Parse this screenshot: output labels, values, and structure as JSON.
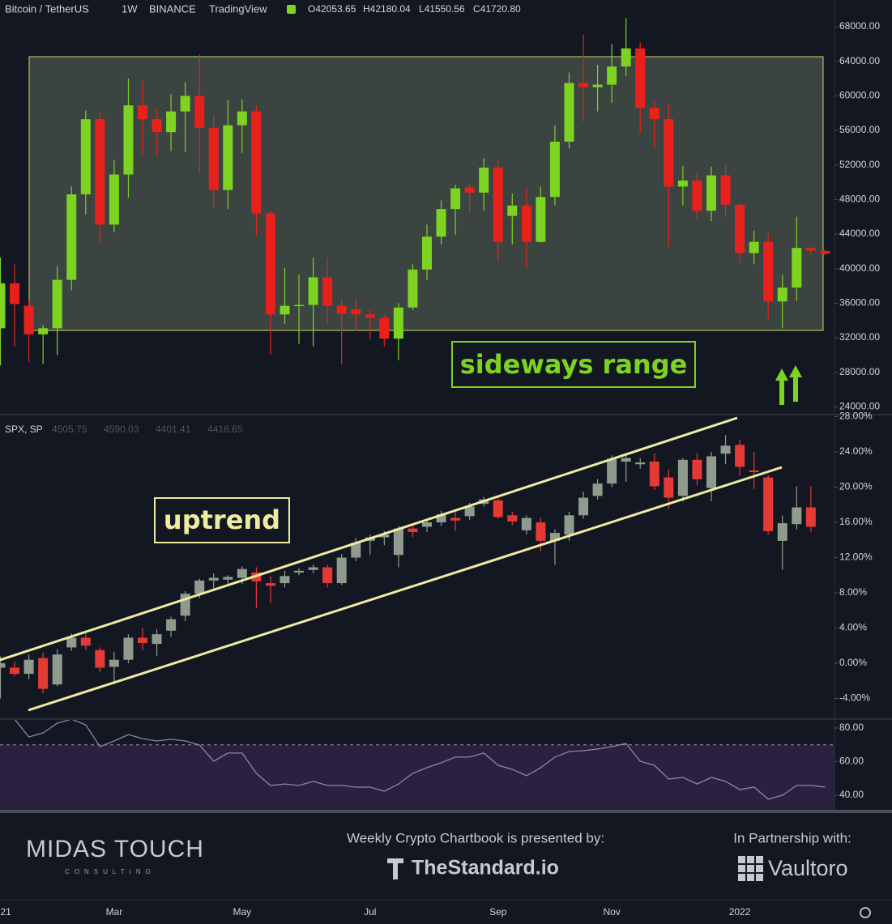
{
  "chart_data": [
    {
      "type": "candlestick",
      "title": "Bitcoin / TetherUS",
      "interval": "1W",
      "exchange": "BINANCE",
      "source": "TradingView",
      "ohlc_labels": [
        "O42053.65",
        "H42180.04",
        "L41550.56",
        "C41720.80"
      ],
      "annotation": "sideways range",
      "up_color": "#7dd321",
      "down_color": "#e8211c",
      "open": [
        33100,
        38300,
        35700,
        32400,
        33100,
        38700,
        48600,
        57300,
        45100,
        50900,
        58900,
        57300,
        55800,
        58200,
        60000,
        56300,
        49100,
        56600,
        58200,
        46400,
        34700,
        35700,
        35800,
        39000,
        35700,
        35300,
        34700,
        34300,
        31900,
        35500,
        39900,
        43700,
        46900,
        49400,
        48800,
        51700,
        46100,
        47300,
        43100,
        48300,
        54700,
        61500,
        61000,
        61300,
        63400,
        65500,
        58600,
        57300,
        49500,
        50200,
        46700,
        50800,
        47400,
        41800,
        43100,
        36200,
        37800,
        42400,
        42053.65
      ],
      "high": [
        41300,
        40500,
        36500,
        33500,
        40300,
        49500,
        58300,
        58100,
        52600,
        62000,
        61700,
        58500,
        60200,
        61600,
        64800,
        57800,
        59500,
        59600,
        58900,
        46700,
        40100,
        39300,
        41300,
        41300,
        36500,
        36500,
        35200,
        34600,
        36000,
        40500,
        45100,
        47900,
        49700,
        49800,
        52800,
        52600,
        48700,
        49300,
        49500,
        56600,
        62700,
        67100,
        63600,
        66000,
        69000,
        66200,
        59300,
        59100,
        51900,
        51100,
        51800,
        52000,
        47600,
        44400,
        44100,
        39300,
        46000,
        42500,
        42180.04
      ],
      "low": [
        28800,
        31000,
        29200,
        29000,
        30000,
        37500,
        46300,
        43000,
        44200,
        48200,
        53300,
        53000,
        53600,
        53500,
        51000,
        47000,
        46900,
        53400,
        43900,
        30100,
        33600,
        31300,
        31000,
        33500,
        28900,
        32800,
        31800,
        31000,
        29400,
        35200,
        38700,
        42800,
        43900,
        46500,
        46700,
        40800,
        42800,
        40100,
        43000,
        47300,
        53900,
        57000,
        58200,
        59200,
        62300,
        55700,
        53900,
        42500,
        47300,
        45700,
        45500,
        46000,
        40600,
        40500,
        34200,
        33100,
        36300,
        41700,
        41550.56
      ],
      "close": [
        38300,
        35900,
        32400,
        33100,
        38700,
        48600,
        57300,
        45100,
        50900,
        58900,
        57300,
        55800,
        58200,
        60000,
        56300,
        49100,
        56600,
        58200,
        46400,
        34700,
        35700,
        35800,
        39000,
        35700,
        34800,
        34700,
        34300,
        31900,
        35500,
        39900,
        43700,
        46900,
        49300,
        48800,
        51700,
        43100,
        47300,
        43100,
        48300,
        54700,
        61500,
        61000,
        61300,
        63400,
        65500,
        58600,
        57300,
        49500,
        50200,
        46700,
        50800,
        47400,
        41800,
        43100,
        36200,
        37800,
        42400,
        42100,
        41720.8
      ],
      "ylim": [
        23100,
        71100
      ],
      "yticks": [
        {
          "value": 24000,
          "label": "24000.00"
        },
        {
          "value": 28000,
          "label": "28000.00"
        },
        {
          "value": 32000,
          "label": "32000.00"
        },
        {
          "value": 36000,
          "label": "36000.00"
        },
        {
          "value": 40000,
          "label": "40000.00"
        },
        {
          "value": 44000,
          "label": "44000.00"
        },
        {
          "value": 48000,
          "label": "48000.00"
        },
        {
          "value": 52000,
          "label": "52000.00"
        },
        {
          "value": 56000,
          "label": "56000.00"
        },
        {
          "value": 60000,
          "label": "60000.00"
        },
        {
          "value": 64000,
          "label": "64000.00"
        },
        {
          "value": 68000,
          "label": "68000.00"
        }
      ]
    },
    {
      "type": "candlestick",
      "title": "SPX, SP",
      "ohlc_labels": [
        "4505.75",
        "4590.03",
        "4401.41",
        "4418.65"
      ],
      "annotation": "uptrend",
      "up_color": "#8f9c8d",
      "down_color": "#e53935",
      "open": [
        -0.5,
        -0.5,
        -1.2,
        0.6,
        -2.4,
        1.8,
        2.9,
        1.5,
        -0.4,
        0.4,
        2.9,
        2.2,
        3.7,
        5.4,
        7.9,
        9.4,
        9.5,
        9.7,
        10.3,
        9.1,
        9.1,
        10.3,
        10.6,
        10.9,
        9.1,
        12.0,
        13.9,
        14.3,
        12.3,
        15.3,
        15.5,
        16.0,
        16.5,
        16.7,
        18.1,
        18.5,
        16.8,
        15.1,
        16.0,
        13.9,
        14.6,
        16.8,
        19.0,
        20.4,
        22.9,
        22.6,
        22.9,
        21.1,
        19.0,
        23.1,
        19.9,
        23.8,
        24.8,
        21.9,
        21.1,
        13.9,
        15.8,
        17.7
      ],
      "high": [
        0.8,
        0.2,
        1.0,
        1.2,
        1.6,
        3.4,
        3.6,
        1.8,
        1.3,
        3.3,
        4.0,
        3.9,
        5.3,
        8.2,
        9.6,
        10.2,
        10.0,
        11.0,
        10.9,
        9.9,
        10.5,
        10.8,
        11.2,
        11.2,
        12.4,
        14.2,
        14.6,
        15.0,
        15.6,
        15.6,
        16.3,
        17.3,
        17.2,
        18.2,
        18.9,
        18.8,
        17.2,
        16.8,
        16.5,
        15.2,
        17.2,
        19.5,
        20.9,
        23.6,
        23.8,
        23.3,
        23.8,
        22.0,
        23.3,
        23.9,
        24.0,
        25.9,
        25.4,
        24.0,
        21.4,
        16.8,
        20.1,
        20.1
      ],
      "low": [
        -4.0,
        -1.5,
        -1.8,
        -3.4,
        -2.6,
        1.4,
        1.5,
        -1.0,
        -2.4,
        0.0,
        1.5,
        0.8,
        3.0,
        4.8,
        7.4,
        8.5,
        9.0,
        9.0,
        6.3,
        6.8,
        8.6,
        10.0,
        10.2,
        8.6,
        8.9,
        11.6,
        12.3,
        13.4,
        10.9,
        14.3,
        14.9,
        15.6,
        15.0,
        16.3,
        17.8,
        16.4,
        15.7,
        14.6,
        12.7,
        11.2,
        13.9,
        16.4,
        18.6,
        20.0,
        20.6,
        22.1,
        19.7,
        17.5,
        18.4,
        20.2,
        18.4,
        22.6,
        21.3,
        19.8,
        14.6,
        10.6,
        15.2,
        14.9
      ],
      "close": [
        0.0,
        -1.2,
        0.4,
        -2.9,
        1.0,
        2.9,
        2.0,
        -0.5,
        0.4,
        2.9,
        2.3,
        3.3,
        5.0,
        7.9,
        9.4,
        9.7,
        9.8,
        10.7,
        9.3,
        8.8,
        9.9,
        10.5,
        10.9,
        9.1,
        12.0,
        13.7,
        14.3,
        14.6,
        15.3,
        14.9,
        16.0,
        16.9,
        16.2,
        17.8,
        18.6,
        16.6,
        16.1,
        16.5,
        13.9,
        14.8,
        16.8,
        18.8,
        20.4,
        23.2,
        23.3,
        22.8,
        20.1,
        18.8,
        23.1,
        20.9,
        23.5,
        24.7,
        22.3,
        21.7,
        15.0,
        15.9,
        17.7,
        15.5
      ],
      "ylim": [
        -6.34,
        28.23
      ],
      "yticks": [
        {
          "value": -4,
          "label": "-4.00%"
        },
        {
          "value": 0,
          "label": "0.00%"
        },
        {
          "value": 4,
          "label": "4.00%"
        },
        {
          "value": 8,
          "label": "8.00%"
        },
        {
          "value": 12,
          "label": "12.00%"
        },
        {
          "value": 16,
          "label": "16.00%"
        },
        {
          "value": 20,
          "label": "20.00%"
        },
        {
          "value": 24,
          "label": "24.00%"
        },
        {
          "value": 28,
          "label": "28.00%"
        }
      ]
    },
    {
      "type": "line",
      "color": "#8b86a6",
      "band": [
        30,
        70
      ],
      "band_color": "#2a2140",
      "categories": [
        "21",
        null,
        null,
        null,
        null,
        null,
        null,
        null,
        "Mar",
        null,
        null,
        null,
        null,
        null,
        null,
        null,
        null,
        "May",
        null,
        null,
        null,
        null,
        null,
        null,
        null,
        null,
        "Jul",
        null,
        null,
        null,
        null,
        null,
        null,
        null,
        null,
        "Sep",
        null,
        null,
        null,
        null,
        null,
        null,
        null,
        "Nov",
        null,
        null,
        null,
        null,
        null,
        null,
        null,
        null,
        "2022",
        null,
        null,
        null,
        null,
        null,
        null
      ],
      "values": [
        88,
        85.3,
        74.7,
        77.1,
        82.9,
        85.3,
        81.9,
        68.9,
        72.3,
        76.1,
        73.7,
        72.3,
        73.3,
        72.3,
        69.9,
        60.2,
        65.1,
        65.1,
        53.0,
        45.8,
        46.7,
        45.8,
        48.2,
        45.8,
        45.8,
        44.8,
        44.8,
        42.4,
        46.7,
        53.0,
        56.4,
        59.3,
        62.7,
        62.7,
        65.1,
        57.8,
        55.4,
        51.6,
        56.4,
        62.7,
        66.0,
        66.5,
        67.5,
        68.9,
        70.8,
        60.2,
        57.8,
        49.6,
        50.6,
        46.7,
        50.6,
        48.2,
        43.4,
        44.8,
        37.6,
        40.0,
        45.8,
        45.8,
        44.8
      ],
      "ylim": [
        31.3,
        85.3
      ],
      "yticks": [
        {
          "value": 40,
          "label": "40.00"
        },
        {
          "value": 60,
          "label": "60.00"
        },
        {
          "value": 80,
          "label": "80.00"
        }
      ]
    }
  ],
  "footer": {
    "left_logo": "MIDAS TOUCH",
    "left_tagline": "CONSULTING",
    "center_caption": "Weekly Crypto Chartbook is presented by:",
    "center_logo": "TheStandard.io",
    "right_caption": "In Partnership with:",
    "right_logo": "Vaultoro"
  }
}
